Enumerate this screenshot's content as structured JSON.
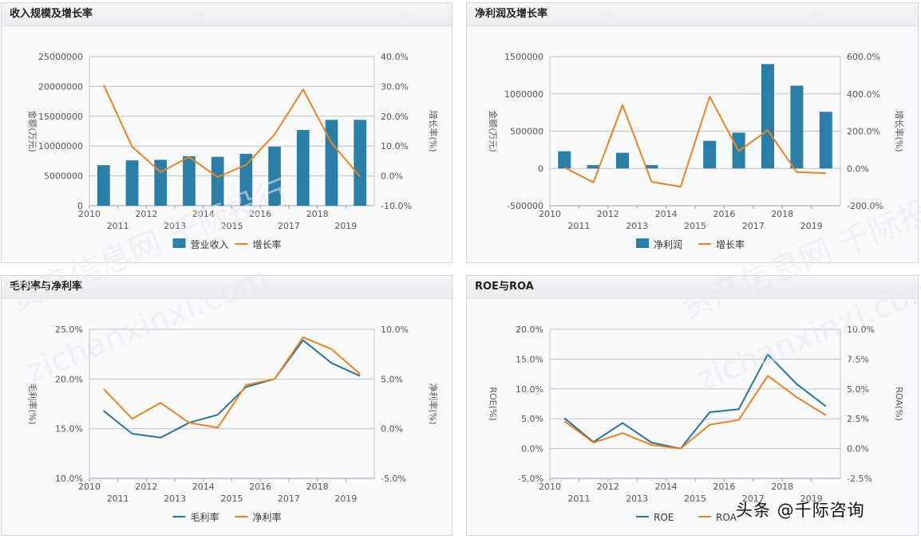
{
  "colors": {
    "bar": "#2a7fa8",
    "line_orange": "#f0821e",
    "line_blue": "#26739c",
    "grid": "#bfc3c8",
    "text": "#555555"
  },
  "watermark": {
    "text_cn": "资产信息网 千际投行",
    "text_en": "zichanxinxi.com"
  },
  "footer": {
    "text": "头条 @千际咨询"
  },
  "chart_data": [
    {
      "type": "bar+line",
      "title": "收入规模及增长率",
      "categories": [
        "2010",
        "2011",
        "2012",
        "2013",
        "2014",
        "2015",
        "2016",
        "2017",
        "2018",
        "2019"
      ],
      "ylabel": "金额(万元)",
      "y2label": "增长率(%)",
      "ylim": [
        0,
        25000000
      ],
      "yticks": [
        "0",
        "5000000",
        "10000000",
        "15000000",
        "20000000",
        "25000000"
      ],
      "y2lim": [
        -10,
        40
      ],
      "y2ticks": [
        "-10.0%",
        "0.0%",
        "10.0%",
        "20.0%",
        "30.0%",
        "40.0%"
      ],
      "bars": {
        "name": "营业收入",
        "values": [
          6800000,
          7600000,
          7700000,
          8300000,
          8200000,
          8700000,
          9900000,
          12700000,
          14400000,
          14400000
        ]
      },
      "lines": [
        {
          "name": "增长率",
          "axis": "y2",
          "color": "orange",
          "values": [
            30.5,
            9.8,
            1.3,
            6.3,
            -0.4,
            3.7,
            13.9,
            29.0,
            11.0,
            -0.2
          ]
        }
      ]
    },
    {
      "type": "bar+line",
      "title": "净利润及增长率",
      "categories": [
        "2010",
        "2011",
        "2012",
        "2013",
        "2014",
        "2015",
        "2016",
        "2017",
        "2018",
        "2019"
      ],
      "ylabel": "金额(万元)",
      "y2label": "增长率(%)",
      "ylim": [
        -500000,
        1500000
      ],
      "yticks": [
        "-500000",
        "0",
        "500000",
        "1000000",
        "1500000"
      ],
      "y2lim": [
        -200,
        600
      ],
      "y2ticks": [
        "-200.0%",
        "0.0%",
        "200.0%",
        "400.0%",
        "600.0%"
      ],
      "bars": {
        "name": "净利润",
        "values": [
          230000,
          45000,
          210000,
          45000,
          0,
          370000,
          480000,
          1400000,
          1110000,
          760000
        ]
      },
      "lines": [
        {
          "name": "增长率",
          "axis": "y2",
          "color": "orange",
          "values": [
            5,
            -75,
            340,
            -72,
            -98,
            385,
            93,
            205,
            -20,
            -25
          ]
        }
      ]
    },
    {
      "type": "line",
      "title": "毛利率与净利率",
      "categories": [
        "2010",
        "2011",
        "2012",
        "2013",
        "2014",
        "2015",
        "2016",
        "2017",
        "2018",
        "2019"
      ],
      "ylabel": "毛利率(%)",
      "y2label": "净利率(%)",
      "ylim": [
        10,
        25
      ],
      "yticks": [
        "10.0%",
        "15.0%",
        "20.0%",
        "25.0%"
      ],
      "y2lim": [
        -5,
        10
      ],
      "y2ticks": [
        "-5.0%",
        "0.0%",
        "5.0%",
        "10.0%"
      ],
      "lines": [
        {
          "name": "毛利率",
          "axis": "y",
          "color": "blue",
          "values": [
            16.8,
            14.5,
            14.1,
            15.6,
            16.4,
            19.2,
            20.0,
            23.9,
            21.6,
            20.3
          ]
        },
        {
          "name": "净利率",
          "axis": "y2",
          "color": "orange",
          "values": [
            4.0,
            1.0,
            2.6,
            0.6,
            0.1,
            4.4,
            5.0,
            9.2,
            8.0,
            5.5
          ]
        }
      ]
    },
    {
      "type": "line",
      "title": "ROE与ROA",
      "categories": [
        "2010",
        "2011",
        "2012",
        "2013",
        "2014",
        "2015",
        "2016",
        "2017",
        "2018",
        "2019"
      ],
      "ylabel": "ROE(%)",
      "y2label": "ROA(%)",
      "ylim": [
        -5,
        20
      ],
      "yticks": [
        "-5.0%",
        "0.0%",
        "5.0%",
        "10.0%",
        "15.0%",
        "20.0%"
      ],
      "y2lim": [
        -2.5,
        10
      ],
      "y2ticks": [
        "-2.5%",
        "0.0%",
        "2.5%",
        "5.0%",
        "7.5%",
        "10.0%"
      ],
      "lines": [
        {
          "name": "ROE",
          "axis": "y",
          "color": "blue",
          "values": [
            5.1,
            1.1,
            4.3,
            1.0,
            0.0,
            6.1,
            6.6,
            15.8,
            10.8,
            7.1
          ]
        },
        {
          "name": "ROA",
          "axis": "y2",
          "color": "orange",
          "values": [
            2.3,
            0.5,
            1.3,
            0.3,
            0.0,
            2.0,
            2.4,
            6.1,
            4.3,
            2.8
          ]
        }
      ]
    }
  ]
}
